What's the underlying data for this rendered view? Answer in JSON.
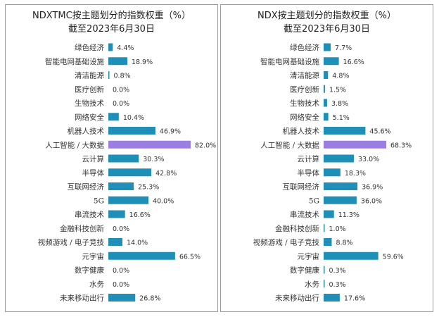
{
  "chart_data": [
    {
      "type": "bar",
      "orientation": "horizontal",
      "title": [
        "NDXTMC按主题划分的指数权重（%）",
        "截至2023年6月30日"
      ],
      "categories": [
        "绿色经济",
        "智能电网基础设施",
        "清洁能源",
        "医疗创新",
        "生物技术",
        "网络安全",
        "机器人技术",
        "人工智能 / 大数据",
        "云计算",
        "半导体",
        "互联网经济",
        "5G",
        "串流技术",
        "金融科技创新",
        "视频游戏 / 电子竞技",
        "元宇宙",
        "数字健康",
        "水务",
        "未来移动出行"
      ],
      "values": [
        4.4,
        18.9,
        0.8,
        0.0,
        0.0,
        10.4,
        46.9,
        82.0,
        30.3,
        42.8,
        25.3,
        40.0,
        16.6,
        0.0,
        14.0,
        66.5,
        0.0,
        0.0,
        26.8
      ],
      "labels": [
        "4.4%",
        "18.9%",
        "0.8%",
        "0.0%",
        "0.0%",
        "10.4%",
        "46.9%",
        "82.0%",
        "30.3%",
        "42.8%",
        "25.3%",
        "40.0%",
        "16.6%",
        "0.0%",
        "14.0%",
        "66.5%",
        "0.0%",
        "0.0%",
        "26.8%"
      ],
      "highlight_index": 7,
      "xlim": [
        0,
        82
      ],
      "colors": {
        "bar": "#1f8fb8",
        "highlight": "#9b7fe0"
      }
    },
    {
      "type": "bar",
      "orientation": "horizontal",
      "title": [
        "NDX按主题划分的指数权重（%）",
        "截至2023年6月30日"
      ],
      "categories": [
        "绿色经济",
        "智能电网基础设施",
        "清洁能源",
        "医疗创新",
        "生物技术",
        "网络安全",
        "机器人技术",
        "人工智能 / 大数据",
        "云计算",
        "半导体",
        "互联网经济",
        "5G",
        "串流技术",
        "金融科技创新",
        "视频游戏 / 电子竞技",
        "元宇宙",
        "数字健康",
        "水务",
        "未来移动出行"
      ],
      "values": [
        7.7,
        16.6,
        4.8,
        1.5,
        3.8,
        5.1,
        45.6,
        68.3,
        33.0,
        18.3,
        36.9,
        36.0,
        11.3,
        1.0,
        8.8,
        59.6,
        0.3,
        0.3,
        17.6
      ],
      "labels": [
        "7.7%",
        "16.6%",
        "4.8%",
        "1.5%",
        "3.8%",
        "5.1%",
        "45.6%",
        "68.3%",
        "33.0%",
        "18.3%",
        "36.9%",
        "36.0%",
        "11.3%",
        "1.0%",
        "8.8%",
        "59.6%",
        "0.3%",
        "0.3%",
        "17.6%"
      ],
      "highlight_index": 7,
      "xlim": [
        0,
        68.3
      ],
      "colors": {
        "bar": "#1f8fb8",
        "highlight": "#9b7fe0"
      }
    }
  ]
}
